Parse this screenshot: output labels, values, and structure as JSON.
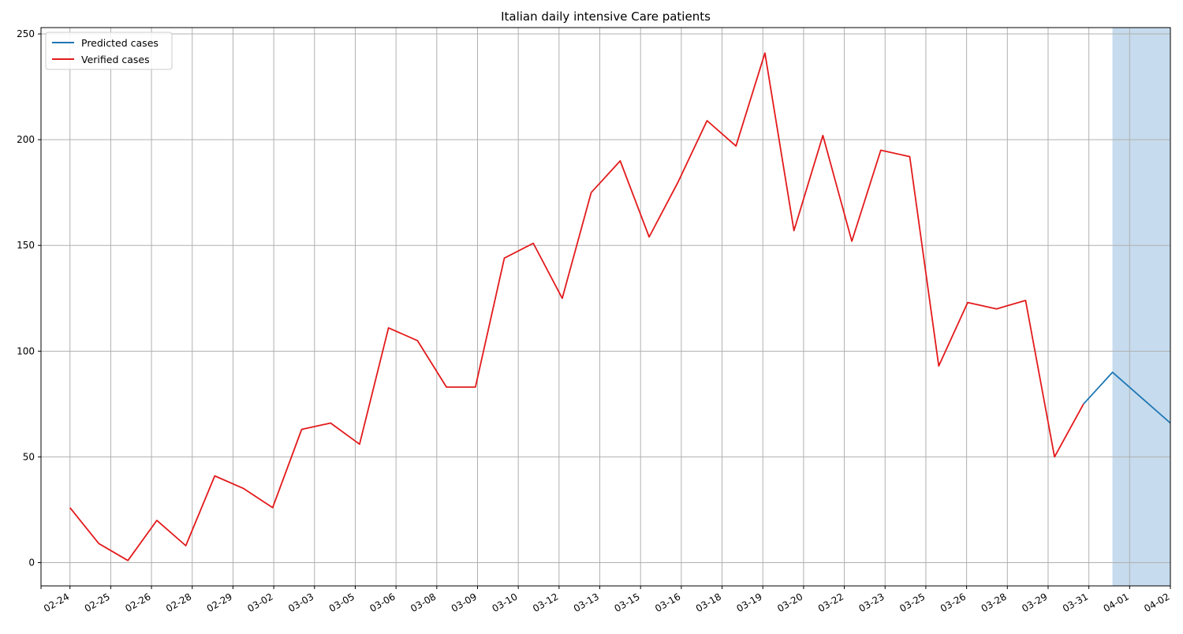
{
  "chart_data": {
    "type": "line",
    "title": "Italian daily intensive Care patients",
    "xlabel": "",
    "ylabel": "",
    "ylim": [
      -11,
      253
    ],
    "yticks": [
      0,
      50,
      100,
      150,
      200,
      250
    ],
    "xlim": [
      "2020-02-23",
      "2020-04-02"
    ],
    "xtick_labels": [
      "02-24",
      "02-25",
      "02-26",
      "02-28",
      "02-29",
      "03-02",
      "03-03",
      "03-05",
      "03-06",
      "03-08",
      "03-09",
      "03-10",
      "03-12",
      "03-13",
      "03-15",
      "03-16",
      "03-18",
      "03-19",
      "03-20",
      "03-22",
      "03-23",
      "03-25",
      "03-26",
      "03-28",
      "03-29",
      "03-31",
      "04-01",
      "04-02"
    ],
    "grid": true,
    "legend_position": "top-left",
    "highlight_span": {
      "from": "2020-03-31",
      "to": "2020-04-02",
      "color": "#c6dbed"
    },
    "series": [
      {
        "name": "Predicted cases",
        "color": "#1f77b4",
        "x": [
          "2020-03-30",
          "2020-03-31",
          "2020-04-01",
          "2020-04-02"
        ],
        "values": [
          75,
          90,
          78,
          66
        ]
      },
      {
        "name": "Verified cases",
        "color": "#e31a1c",
        "x": [
          "2020-02-24",
          "2020-02-25",
          "2020-02-26",
          "2020-02-27",
          "2020-02-28",
          "2020-02-29",
          "2020-03-01",
          "2020-03-02",
          "2020-03-03",
          "2020-03-04",
          "2020-03-05",
          "2020-03-06",
          "2020-03-07",
          "2020-03-08",
          "2020-03-09",
          "2020-03-10",
          "2020-03-11",
          "2020-03-12",
          "2020-03-13",
          "2020-03-14",
          "2020-03-15",
          "2020-03-16",
          "2020-03-17",
          "2020-03-18",
          "2020-03-19",
          "2020-03-20",
          "2020-03-21",
          "2020-03-22",
          "2020-03-23",
          "2020-03-24",
          "2020-03-25",
          "2020-03-26",
          "2020-03-27",
          "2020-03-28",
          "2020-03-29",
          "2020-03-30"
        ],
        "values": [
          26,
          9,
          1,
          20,
          8,
          41,
          35,
          26,
          63,
          66,
          56,
          111,
          105,
          83,
          83,
          144,
          151,
          125,
          175,
          190,
          154,
          180,
          209,
          197,
          241,
          157,
          202,
          152,
          195,
          192,
          93,
          123,
          120,
          124,
          50,
          75
        ]
      }
    ]
  }
}
